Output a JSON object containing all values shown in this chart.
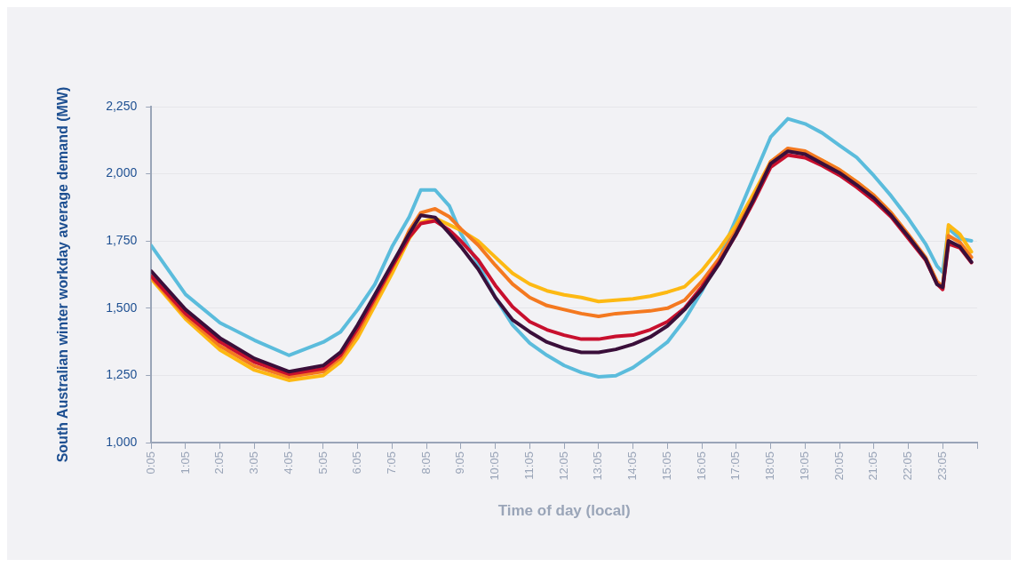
{
  "chart_data": {
    "type": "line",
    "xlabel": "Time of day (local)",
    "ylabel": "South Australian winter workday average demand (MW)",
    "x": [
      0.0833,
      1.083,
      2.083,
      3.083,
      4.083,
      5.083,
      5.583,
      6.083,
      6.583,
      7.083,
      7.583,
      7.917,
      8.333,
      8.75,
      9.083,
      9.583,
      10.083,
      10.583,
      11.083,
      11.583,
      12.083,
      12.583,
      13.083,
      13.583,
      14.083,
      14.583,
      15.083,
      15.583,
      16.083,
      16.583,
      17.083,
      17.583,
      18.083,
      18.583,
      19.083,
      19.583,
      20.083,
      20.583,
      21.083,
      21.583,
      22.083,
      22.583,
      22.917,
      23.083,
      23.25,
      23.583,
      23.917
    ],
    "series": [
      {
        "color": "#5bbcdc",
        "values": [
          1733,
          1551,
          1446,
          1381,
          1325,
          1374,
          1412,
          1495,
          1589,
          1729,
          1840,
          1940,
          1940,
          1880,
          1778,
          1665,
          1540,
          1438,
          1370,
          1325,
          1287,
          1261,
          1245,
          1249,
          1279,
          1325,
          1374,
          1457,
          1563,
          1684,
          1834,
          1986,
          2137,
          2205,
          2186,
          2152,
          2106,
          2061,
          1993,
          1918,
          1834,
          1740,
          1657,
          1634,
          1797,
          1759,
          1751
        ]
      },
      {
        "color": "#fdb913",
        "values": [
          1610,
          1460,
          1345,
          1270,
          1232,
          1250,
          1300,
          1390,
          1510,
          1630,
          1760,
          1820,
          1835,
          1810,
          1790,
          1750,
          1690,
          1630,
          1590,
          1565,
          1550,
          1540,
          1525,
          1530,
          1535,
          1545,
          1560,
          1580,
          1640,
          1720,
          1810,
          1925,
          2045,
          2090,
          2080,
          2050,
          2015,
          1970,
          1920,
          1855,
          1770,
          1685,
          1595,
          1575,
          1810,
          1775,
          1710
        ]
      },
      {
        "color": "#f47920",
        "values": [
          1615,
          1470,
          1360,
          1285,
          1245,
          1265,
          1315,
          1410,
          1530,
          1650,
          1790,
          1855,
          1870,
          1840,
          1795,
          1735,
          1660,
          1590,
          1540,
          1510,
          1495,
          1480,
          1470,
          1480,
          1485,
          1490,
          1500,
          1530,
          1600,
          1685,
          1790,
          1910,
          2045,
          2095,
          2085,
          2050,
          2015,
          1970,
          1920,
          1855,
          1775,
          1690,
          1600,
          1580,
          1770,
          1745,
          1690
        ]
      },
      {
        "color": "#c8102e",
        "values": [
          1620,
          1480,
          1375,
          1300,
          1255,
          1275,
          1325,
          1425,
          1540,
          1655,
          1765,
          1815,
          1825,
          1790,
          1750,
          1680,
          1585,
          1505,
          1450,
          1420,
          1400,
          1385,
          1385,
          1395,
          1400,
          1420,
          1450,
          1500,
          1580,
          1670,
          1775,
          1895,
          2025,
          2070,
          2060,
          2030,
          1995,
          1950,
          1900,
          1840,
          1760,
          1680,
          1590,
          1570,
          1740,
          1725,
          1670
        ]
      },
      {
        "color": "#3a0f3a",
        "values": [
          1638,
          1495,
          1389,
          1313,
          1264,
          1287,
          1336,
          1438,
          1551,
          1665,
          1778,
          1846,
          1838,
          1778,
          1729,
          1646,
          1540,
          1457,
          1412,
          1374,
          1351,
          1336,
          1336,
          1347,
          1366,
          1393,
          1434,
          1495,
          1570,
          1665,
          1778,
          1903,
          2038,
          2084,
          2073,
          2038,
          2004,
          1959,
          1910,
          1846,
          1767,
          1684,
          1589,
          1578,
          1751,
          1729,
          1672
        ]
      }
    ],
    "xlim": [
      0.0833,
      24.0833
    ],
    "xticks": [
      {
        "value": 0.0833,
        "label": "0:05"
      },
      {
        "value": 1.0833,
        "label": "1:05"
      },
      {
        "value": 2.0833,
        "label": "2:05"
      },
      {
        "value": 3.0833,
        "label": "3:05"
      },
      {
        "value": 4.0833,
        "label": "4:05"
      },
      {
        "value": 5.0833,
        "label": "5:05"
      },
      {
        "value": 6.0833,
        "label": "6:05"
      },
      {
        "value": 7.0833,
        "label": "7:05"
      },
      {
        "value": 8.0833,
        "label": "8:05"
      },
      {
        "value": 9.0833,
        "label": "9:05"
      },
      {
        "value": 10.0833,
        "label": "10:05"
      },
      {
        "value": 11.0833,
        "label": "11:05"
      },
      {
        "value": 12.0833,
        "label": "12:05"
      },
      {
        "value": 13.0833,
        "label": "13:05"
      },
      {
        "value": 14.0833,
        "label": "14:05"
      },
      {
        "value": 15.0833,
        "label": "15:05"
      },
      {
        "value": 16.0833,
        "label": "16:05"
      },
      {
        "value": 17.0833,
        "label": "17:05"
      },
      {
        "value": 18.0833,
        "label": "18:05"
      },
      {
        "value": 19.0833,
        "label": "19:05"
      },
      {
        "value": 20.0833,
        "label": "20:05"
      },
      {
        "value": 21.0833,
        "label": "21:05"
      },
      {
        "value": 22.0833,
        "label": "22:05"
      },
      {
        "value": 23.0833,
        "label": "23:05"
      },
      {
        "value": 24.0833,
        "label": null
      }
    ],
    "ylim": [
      1000,
      2250
    ],
    "yticks": [
      {
        "value": 1000,
        "label": "1,000"
      },
      {
        "value": 1250,
        "label": "1,250"
      },
      {
        "value": 1500,
        "label": "1,500"
      },
      {
        "value": 1750,
        "label": "1,750"
      },
      {
        "value": 2000,
        "label": "2,000"
      },
      {
        "value": 2250,
        "label": "2,250"
      }
    ],
    "grid": "y",
    "legend": false,
    "marker": "none",
    "line_style": "solid"
  }
}
